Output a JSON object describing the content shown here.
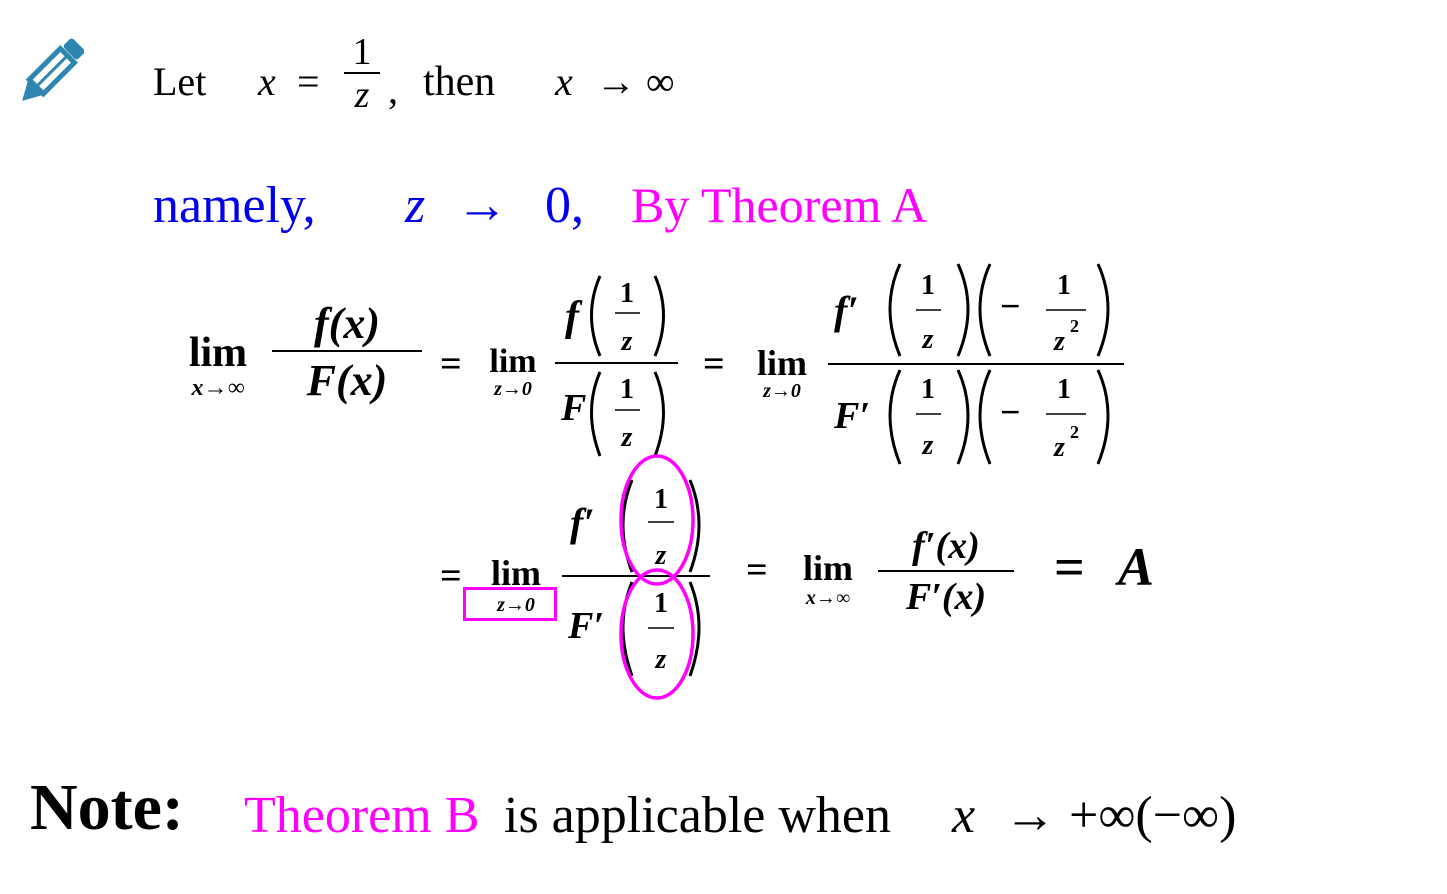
{
  "line1": {
    "let": "Let",
    "x": "x",
    "eq": "=",
    "one": "1",
    "z": "z",
    "comma": ",",
    "then": "then",
    "arrow_expr_x": "x",
    "arrow_expr_rest": "→ ∞"
  },
  "line2": {
    "namely": "namely,",
    "z": "z",
    "arrow": "→",
    "zero": "0,",
    "by_theorem": "By Theorem A"
  },
  "eq1": {
    "lim": "lim",
    "sub_x_inf": "x→∞",
    "sub_z_0": "z→0",
    "f": "f",
    "F": "F",
    "x_paren": "(x)",
    "eq": "=",
    "one": "1",
    "z": "z",
    "prime": "′",
    "minus": "−",
    "z2_base": "z",
    "z2_exp": "2"
  },
  "eq2": {
    "eq": "=",
    "lim": "lim",
    "sub_z_0": "z→0",
    "sub_x_inf": "x→∞",
    "fprime_x": "f′(x)",
    "Fprime_x": "F′(x)",
    "f": "f",
    "F": "F",
    "prime": "′",
    "one": "1",
    "z": "z",
    "result_eq": "=",
    "result_A": "A"
  },
  "note": {
    "label": "Note:",
    "theorem_b": "Theorem B",
    "rest": "is applicable when",
    "x": "x",
    "expr": "→ +∞(−∞)"
  },
  "colors": {
    "blue": "#0000ee",
    "magenta": "#ff00ff",
    "icon": "#2e86b0"
  },
  "icons": {
    "pencil": "pencil-icon"
  }
}
